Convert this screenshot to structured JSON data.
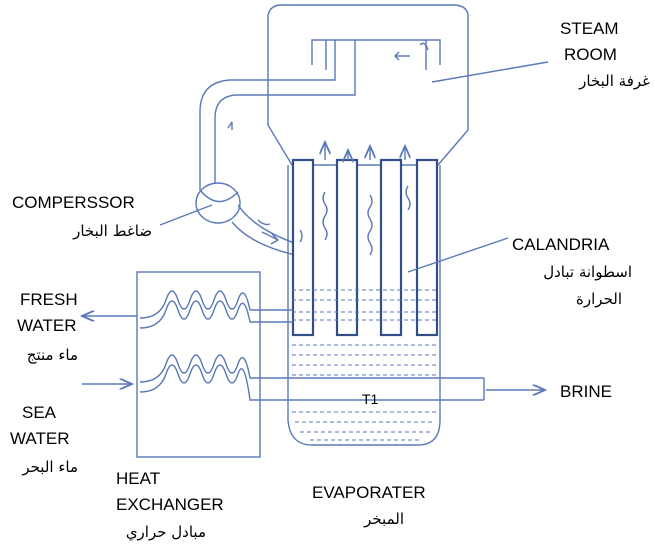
{
  "labels": {
    "steam_room_en_1": "STEAM",
    "steam_room_en_2": "ROOM",
    "steam_room_ar": "غرفة البخار",
    "compressor_en": "COMPERSSOR",
    "compressor_ar": "ضاغط البخار",
    "calandria_en": "CALANDRIA",
    "calandria_ar_1": "اسطوانة تبادل",
    "calandria_ar_2": "الحرارة",
    "fresh_water_en_1": "FRESH",
    "fresh_water_en_2": "WATER",
    "fresh_water_ar": "ماء منتج",
    "sea_water_en_1": "SEA",
    "sea_water_en_2": "WATER",
    "sea_water_ar": "ماء البحر",
    "heat_exchanger_en_1": "HEAT",
    "heat_exchanger_en_2": "EXCHANGER",
    "heat_exchanger_ar": "مبادل حراري",
    "evaporator_en": "EVAPORATER",
    "evaporator_ar": "المبخر",
    "brine_en": "BRINE",
    "t1": "T1"
  },
  "colors": {
    "line": "#5b78b8",
    "tube_outline": "#2f4f86",
    "text": "#000000"
  }
}
